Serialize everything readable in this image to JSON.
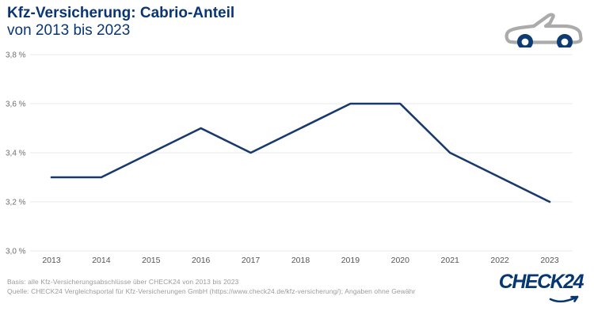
{
  "header": {
    "title": "Kfz-Versicherung: Cabrio-Anteil",
    "subtitle": "von 2013 bis 2023"
  },
  "chart_data": {
    "type": "line",
    "title": "Kfz-Versicherung: Cabrio-Anteil von 2013 bis 2023",
    "categories": [
      "2013",
      "2014",
      "2015",
      "2016",
      "2017",
      "2018",
      "2019",
      "2020",
      "2021",
      "2022",
      "2023"
    ],
    "series": [
      {
        "name": "Cabrio-Anteil",
        "values": [
          3.3,
          3.3,
          3.4,
          3.5,
          3.4,
          3.5,
          3.6,
          3.6,
          3.4,
          3.3,
          3.2
        ]
      }
    ],
    "xlabel": "",
    "ylabel": "",
    "ylim": [
      3.0,
      3.8
    ],
    "yticks": [
      {
        "value": 3.8,
        "label": "3,8 %"
      },
      {
        "value": 3.6,
        "label": "3,6 %"
      },
      {
        "value": 3.4,
        "label": "3,4 %"
      },
      {
        "value": 3.2,
        "label": "3,2 %"
      },
      {
        "value": 3.0,
        "label": "3,0 %"
      }
    ],
    "grid": true,
    "legend": false,
    "line_color": "#17396b"
  },
  "footer": {
    "line1": "Basis: alle Kfz-Versicherungsabschlüsse über CHECK24 von 2013 bis 2023",
    "line2": "Quelle: CHECK24 Vergleichsportal für Kfz-Versicherungen GmbH (https://www.check24.de/kfz-versicherung/); Angaben ohne Gewähr"
  },
  "logo": {
    "text": "CHECK24"
  },
  "colors": {
    "brand_blue": "#063773",
    "title_blue": "#093673",
    "line_navy": "#17396b",
    "grid_gray": "#e9e9e9",
    "axis_text": "#666666",
    "footnote_gray": "#9b9b9b",
    "car_body_gray": "#ababab",
    "wheel_navy": "#0d3c74"
  }
}
